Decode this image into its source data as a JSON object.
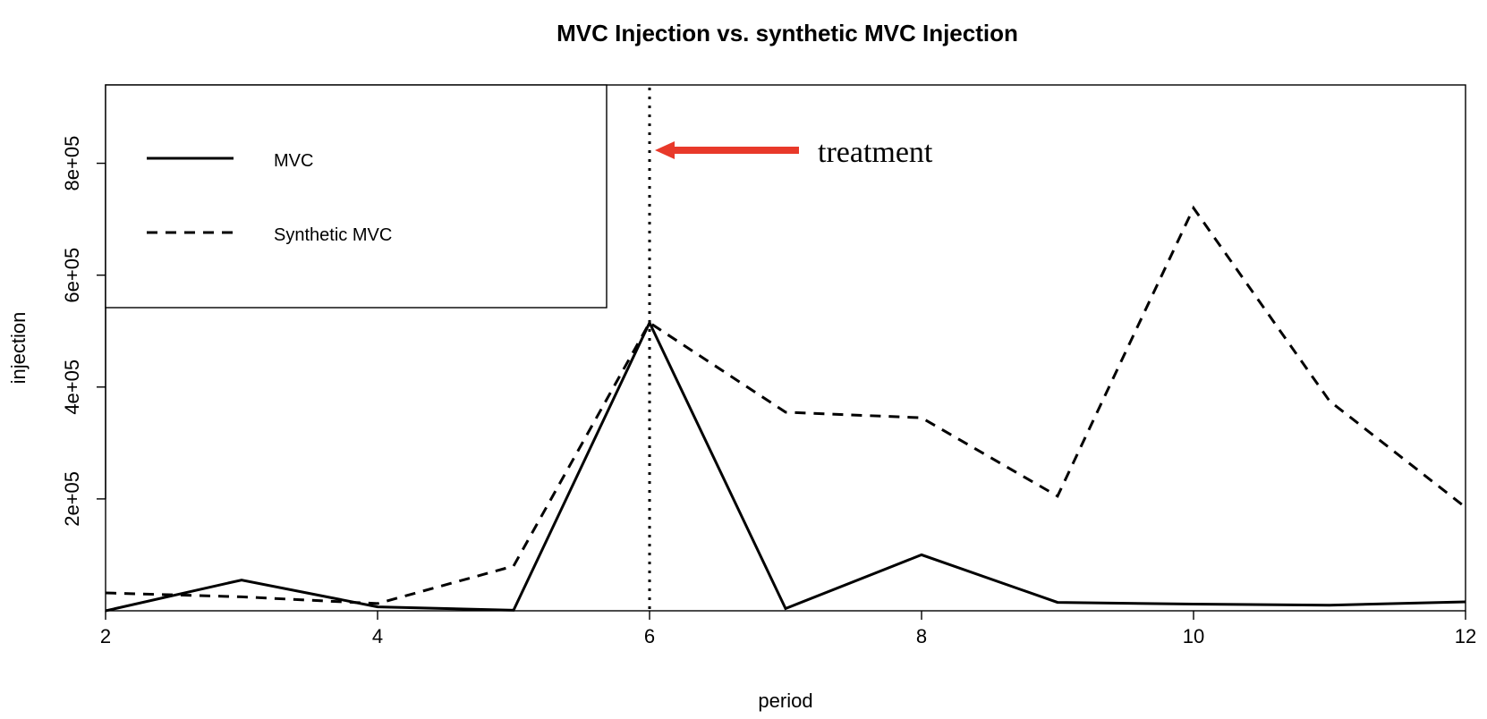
{
  "chart_data": {
    "type": "line",
    "title": "MVC Injection vs. synthetic MVC Injection",
    "xlabel": "period",
    "ylabel": "injection",
    "xlim": [
      2,
      12
    ],
    "ylim": [
      0,
      940000
    ],
    "x_ticks": [
      2,
      4,
      6,
      8,
      10,
      12
    ],
    "x_tick_labels": [
      "2",
      "4",
      "6",
      "8",
      "10",
      "12"
    ],
    "y_ticks": [
      200000,
      400000,
      600000,
      800000
    ],
    "y_tick_labels": [
      "2e+05",
      "4e+05",
      "6e+05",
      "8e+05"
    ],
    "grid": false,
    "legend_position": "top-left",
    "series": [
      {
        "name": "MVC",
        "line_style": "solid",
        "color": "#000000",
        "x": [
          2,
          3,
          4,
          5,
          6,
          7,
          8,
          9,
          10,
          11,
          12
        ],
        "values": [
          0,
          55000,
          7000,
          1000,
          515000,
          4000,
          100000,
          15000,
          12000,
          10000,
          16000
        ]
      },
      {
        "name": "Synthetic MVC",
        "line_style": "dashed",
        "color": "#000000",
        "x": [
          2,
          3,
          4,
          5,
          6,
          7,
          8,
          9,
          10,
          11,
          12
        ],
        "values": [
          32000,
          25000,
          13000,
          80000,
          515000,
          355000,
          345000,
          205000,
          720000,
          375000,
          185000
        ]
      }
    ],
    "treatment_line": {
      "x": 6,
      "line_style": "dotted"
    },
    "annotation": {
      "text": "treatment",
      "arrow_color": "#e8392a"
    }
  }
}
